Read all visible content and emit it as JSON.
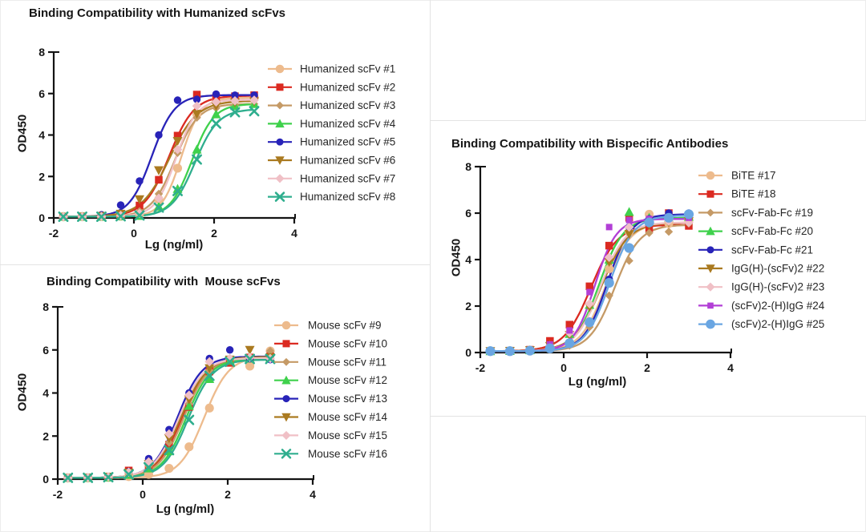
{
  "page": {
    "background": "#ffffff",
    "divider_color": "#e3e3e3"
  },
  "chart_data": [
    {
      "type": "line",
      "title": "Binding Compatibility with Humanized scFvs",
      "xlabel": "Lg (ng/ml)",
      "ylabel": "OD450",
      "xlim": [
        -2,
        4
      ],
      "ylim": [
        0,
        8
      ],
      "xticks": [
        -2,
        0,
        2,
        4
      ],
      "yticks": [
        0,
        2,
        4,
        6,
        8
      ],
      "grid": false,
      "legend_position": "right",
      "x": [
        -1.76,
        -1.29,
        -0.81,
        -0.33,
        0.14,
        0.62,
        1.09,
        1.57,
        2.05,
        2.52,
        3.0
      ],
      "series": [
        {
          "name": "Humanized scFv #1",
          "color": "#EDBB8D",
          "marker": "circle",
          "size": 10,
          "values": [
            0.06,
            0.06,
            0.06,
            0.08,
            0.18,
            0.9,
            2.4,
            5.0,
            5.65,
            5.75,
            5.8
          ],
          "fit": {
            "top": 5.8,
            "ec50": 1.18,
            "hill": 1.8
          }
        },
        {
          "name": "Humanized scFv #2",
          "color": "#DB2A21",
          "marker": "square",
          "size": 9.5,
          "values": [
            0.06,
            0.06,
            0.07,
            0.18,
            0.6,
            1.84,
            3.97,
            5.95,
            5.82,
            5.87,
            5.92
          ],
          "fit": {
            "top": 5.9,
            "ec50": 0.88,
            "hill": 1.4
          }
        },
        {
          "name": "Humanized scFv #3",
          "color": "#C59A66",
          "marker": "diamond",
          "size": 8,
          "values": [
            0.06,
            0.06,
            0.07,
            0.13,
            0.32,
            1.16,
            3.14,
            4.84,
            5.3,
            5.45,
            5.5
          ],
          "fit": {
            "top": 5.5,
            "ec50": 1.02,
            "hill": 1.5
          }
        },
        {
          "name": "Humanized scFv #4",
          "color": "#3FD14C",
          "marker": "triangle",
          "size": 10,
          "values": [
            0.06,
            0.06,
            0.06,
            0.08,
            0.1,
            0.55,
            1.4,
            3.3,
            5.0,
            5.4,
            5.5
          ],
          "fit": {
            "top": 5.5,
            "ec50": 1.45,
            "hill": 1.6
          }
        },
        {
          "name": "Humanized scFv #5",
          "color": "#2823B8",
          "marker": "circle",
          "size": 8.5,
          "values": [
            0.06,
            0.08,
            0.15,
            0.62,
            1.78,
            4.0,
            5.68,
            5.72,
            5.97,
            5.92,
            5.92
          ],
          "fit": {
            "top": 5.93,
            "ec50": 0.45,
            "hill": 1.55
          }
        },
        {
          "name": "Humanized scFv #6",
          "color": "#AA7A20",
          "marker": "triangle-down",
          "size": 10,
          "values": [
            0.06,
            0.07,
            0.09,
            0.2,
            0.9,
            2.3,
            3.71,
            5.02,
            5.4,
            5.57,
            5.62
          ],
          "fit": {
            "top": 5.65,
            "ec50": 0.88,
            "hill": 1.25
          }
        },
        {
          "name": "Humanized scFv #7",
          "color": "#F0C0C6",
          "marker": "diamond",
          "size": 9,
          "values": [
            0.06,
            0.06,
            0.07,
            0.12,
            0.22,
            0.95,
            3.3,
            5.4,
            5.6,
            5.65,
            5.68
          ],
          "fit": {
            "top": 5.7,
            "ec50": 1.05,
            "hill": 1.7
          }
        },
        {
          "name": "Humanized scFv #8",
          "color": "#2FAE8E",
          "marker": "x",
          "size": 10,
          "values": [
            0.06,
            0.06,
            0.06,
            0.08,
            0.12,
            0.5,
            1.3,
            2.82,
            4.55,
            5.1,
            5.15
          ],
          "fit": {
            "top": 5.25,
            "ec50": 1.52,
            "hill": 1.5
          }
        }
      ]
    },
    {
      "type": "line",
      "title": "Binding Compatibility with  Mouse scFvs",
      "xlabel": "Lg (ng/ml)",
      "ylabel": "OD450",
      "xlim": [
        -2,
        4
      ],
      "ylim": [
        0,
        8
      ],
      "xticks": [
        -2,
        0,
        2,
        4
      ],
      "yticks": [
        0,
        2,
        4,
        6,
        8
      ],
      "grid": false,
      "legend_position": "right",
      "x": [
        -1.76,
        -1.29,
        -0.81,
        -0.33,
        0.14,
        0.62,
        1.09,
        1.57,
        2.05,
        2.52,
        3.0
      ],
      "series": [
        {
          "name": "Mouse scFv #9",
          "color": "#EDBB8D",
          "marker": "circle",
          "size": 10,
          "values": [
            0.06,
            0.06,
            0.08,
            0.12,
            0.22,
            0.5,
            1.5,
            3.3,
            5.55,
            5.25,
            5.95
          ],
          "fit": {
            "top": 5.7,
            "ec50": 1.45,
            "hill": 1.5
          }
        },
        {
          "name": "Mouse scFv #10",
          "color": "#DB2A21",
          "marker": "square",
          "size": 9.5,
          "values": [
            0.06,
            0.07,
            0.1,
            0.4,
            0.65,
            1.6,
            3.35,
            5.0,
            5.4,
            5.65,
            5.7
          ],
          "fit": {
            "top": 5.62,
            "ec50": 0.93,
            "hill": 1.4
          }
        },
        {
          "name": "Mouse scFv #11",
          "color": "#C59A66",
          "marker": "diamond",
          "size": 8,
          "values": [
            0.06,
            0.06,
            0.09,
            0.25,
            0.6,
            1.7,
            3.5,
            5.05,
            5.55,
            5.65,
            5.95
          ],
          "fit": {
            "top": 5.68,
            "ec50": 0.97,
            "hill": 1.45
          }
        },
        {
          "name": "Mouse scFv #12",
          "color": "#3FD14C",
          "marker": "triangle",
          "size": 10,
          "values": [
            0.06,
            0.06,
            0.08,
            0.2,
            0.5,
            1.3,
            3.4,
            4.65,
            5.5,
            5.6,
            5.65
          ],
          "fit": {
            "top": 5.6,
            "ec50": 1.02,
            "hill": 1.5
          }
        },
        {
          "name": "Mouse scFv #13",
          "color": "#2823B8",
          "marker": "circle",
          "size": 8.5,
          "values": [
            0.06,
            0.08,
            0.12,
            0.35,
            0.95,
            2.3,
            4.0,
            5.6,
            6.0,
            5.6,
            5.55
          ],
          "fit": {
            "top": 5.7,
            "ec50": 0.82,
            "hill": 1.5
          }
        },
        {
          "name": "Mouse scFv #14",
          "color": "#AA7A20",
          "marker": "triangle-down",
          "size": 10,
          "values": [
            0.06,
            0.07,
            0.11,
            0.3,
            0.7,
            1.9,
            3.7,
            5.15,
            5.55,
            6.0,
            5.65
          ],
          "fit": {
            "top": 5.68,
            "ec50": 0.9,
            "hill": 1.4
          }
        },
        {
          "name": "Mouse scFv #15",
          "color": "#F0C0C6",
          "marker": "diamond",
          "size": 9,
          "values": [
            0.06,
            0.07,
            0.11,
            0.32,
            0.8,
            2.1,
            3.9,
            5.45,
            5.6,
            5.65,
            5.6
          ],
          "fit": {
            "top": 5.63,
            "ec50": 0.85,
            "hill": 1.45
          }
        },
        {
          "name": "Mouse scFv #16",
          "color": "#2FAE8E",
          "marker": "x",
          "size": 10,
          "values": [
            0.06,
            0.06,
            0.09,
            0.22,
            0.55,
            1.35,
            2.75,
            4.8,
            5.45,
            5.58,
            5.58
          ],
          "fit": {
            "top": 5.55,
            "ec50": 1.07,
            "hill": 1.5
          }
        }
      ]
    },
    {
      "type": "line",
      "title": "Binding Compatibility with Bispecific Antibodies",
      "xlabel": "Lg (ng/ml)",
      "ylabel": "OD450",
      "xlim": [
        -2,
        4
      ],
      "ylim": [
        0,
        8
      ],
      "xticks": [
        -2,
        0,
        2,
        4
      ],
      "yticks": [
        0,
        2,
        4,
        6,
        8
      ],
      "grid": false,
      "legend_position": "right",
      "x": [
        -1.76,
        -1.29,
        -0.81,
        -0.33,
        0.14,
        0.62,
        1.09,
        1.57,
        2.05,
        2.52,
        3.0
      ],
      "series": [
        {
          "name": "BiTE #17",
          "color": "#EDBB8D",
          "marker": "circle",
          "size": 10,
          "values": [
            0.06,
            0.07,
            0.09,
            0.2,
            0.4,
            1.3,
            3.6,
            5.2,
            5.95,
            5.55,
            5.7
          ],
          "fit": {
            "top": 5.6,
            "ec50": 1.0,
            "hill": 1.45
          }
        },
        {
          "name": "BiTE #18",
          "color": "#DB2A21",
          "marker": "square",
          "size": 9.5,
          "values": [
            0.06,
            0.08,
            0.12,
            0.5,
            1.2,
            2.85,
            4.6,
            5.8,
            5.35,
            6.0,
            5.45
          ],
          "fit": {
            "top": 5.5,
            "ec50": 0.65,
            "hill": 1.35
          }
        },
        {
          "name": "scFv-Fab-Fc #19",
          "color": "#C59A66",
          "marker": "diamond",
          "size": 8,
          "values": [
            0.06,
            0.06,
            0.08,
            0.15,
            0.3,
            1.1,
            2.45,
            3.95,
            5.15,
            5.2,
            5.55
          ],
          "fit": {
            "top": 5.5,
            "ec50": 1.22,
            "hill": 1.45
          }
        },
        {
          "name": "scFv-Fab-Fc #20",
          "color": "#3FD14C",
          "marker": "triangle",
          "size": 10,
          "values": [
            0.06,
            0.07,
            0.1,
            0.3,
            0.8,
            2.05,
            4.0,
            6.05,
            5.8,
            5.8,
            5.85
          ],
          "fit": {
            "top": 5.8,
            "ec50": 0.85,
            "hill": 1.5
          }
        },
        {
          "name": "scFv-Fab-Fc #21",
          "color": "#2823B8",
          "marker": "circle",
          "size": 8.5,
          "values": [
            0.06,
            0.06,
            0.08,
            0.2,
            0.4,
            1.35,
            3.15,
            5.4,
            5.75,
            6.0,
            6.0
          ],
          "fit": {
            "top": 5.95,
            "ec50": 1.05,
            "hill": 1.55
          }
        },
        {
          "name": "IgG(H)-(scFv)2 #22",
          "color": "#AA7A20",
          "marker": "triangle-down",
          "size": 10,
          "values": [
            0.06,
            0.07,
            0.1,
            0.28,
            0.75,
            1.95,
            3.9,
            5.1,
            5.5,
            5.6,
            5.65
          ],
          "fit": {
            "top": 5.6,
            "ec50": 0.9,
            "hill": 1.35
          }
        },
        {
          "name": "IgG(H)-(scFv)2 #23",
          "color": "#F0C0C6",
          "marker": "diamond",
          "size": 9,
          "values": [
            0.06,
            0.07,
            0.1,
            0.3,
            0.85,
            2.1,
            4.1,
            5.4,
            5.6,
            5.65,
            5.6
          ],
          "fit": {
            "top": 5.6,
            "ec50": 0.88,
            "hill": 1.45
          }
        },
        {
          "name": "(scFv)2-(H)IgG #24",
          "color": "#B23FD6",
          "marker": "square",
          "size": 8,
          "values": [
            0.06,
            0.07,
            0.12,
            0.35,
            0.95,
            2.6,
            5.4,
            5.7,
            5.75,
            5.78,
            5.8
          ],
          "fit": {
            "top": 5.75,
            "ec50": 0.75,
            "hill": 1.7
          }
        },
        {
          "name": "(scFv)2-(H)IgG #25",
          "color": "#6AA6E2",
          "marker": "circle",
          "size": 11,
          "values": [
            0.06,
            0.06,
            0.08,
            0.18,
            0.4,
            1.3,
            3.0,
            4.5,
            5.6,
            5.8,
            5.95
          ],
          "fit": {
            "top": 5.9,
            "ec50": 1.1,
            "hill": 1.5
          }
        }
      ]
    }
  ]
}
